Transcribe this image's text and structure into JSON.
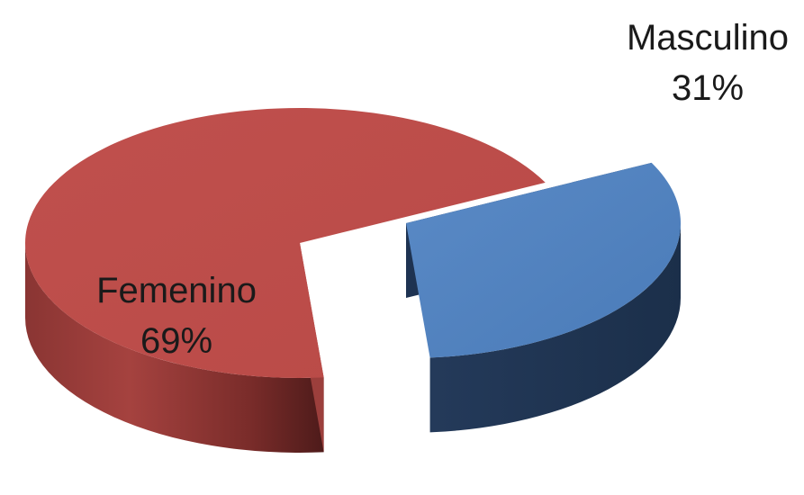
{
  "chart_data": {
    "type": "pie",
    "style": "3d-exploded",
    "title": "",
    "slices": [
      {
        "label": "Femenino",
        "value": 69,
        "value_label": "69%",
        "color": "#C0504D"
      },
      {
        "label": "Masculino",
        "value": 31,
        "value_label": "31%",
        "color": "#4F81BD"
      }
    ],
    "legend": "none"
  }
}
